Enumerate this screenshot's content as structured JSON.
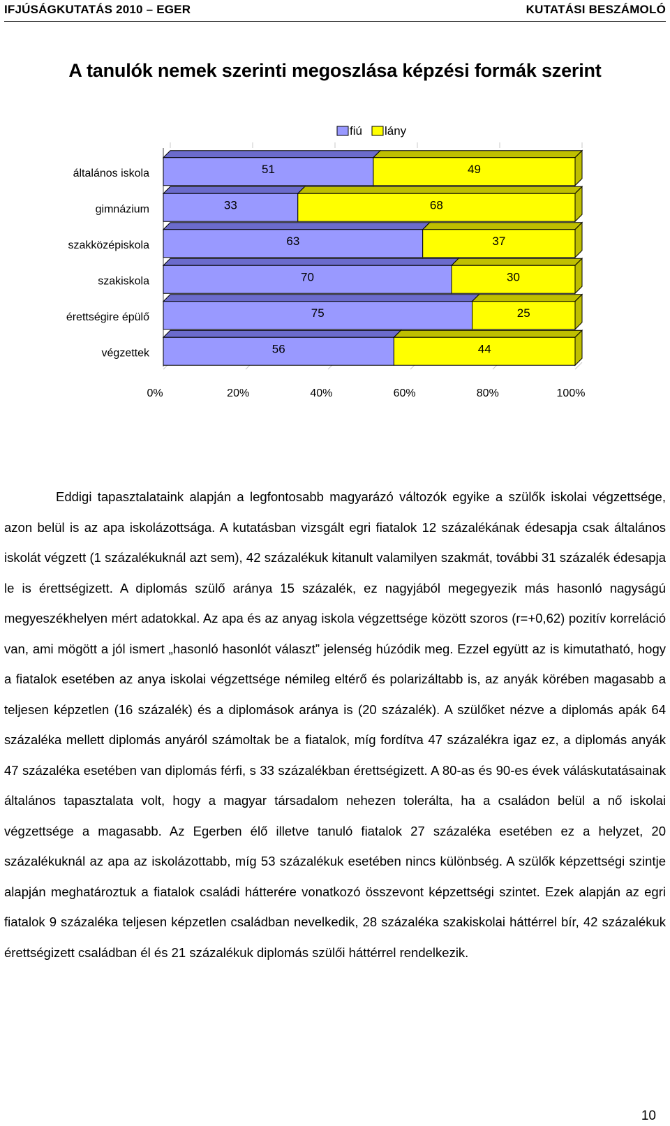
{
  "header": {
    "left": "IFJÚSÁGKUTATÁS 2010 – EGER",
    "right": "KUTATÁSI BESZÁMOLÓ"
  },
  "colors": {
    "fiu": "#9999FF",
    "lany": "#FFFF00",
    "fiu_side": "#6B6BCC",
    "lany_side": "#BFBF00",
    "edge": "#000000"
  },
  "chart_data": {
    "type": "bar",
    "orientation": "horizontal",
    "stacked": true,
    "percent_stacked": true,
    "title": "A tanulók nemek szerinti megoszlása képzési formák szerint",
    "categories": [
      "általános iskola",
      "gimnázium",
      "szakközépiskola",
      "szakiskola",
      "érettségire épülő",
      "végzettek"
    ],
    "series": [
      {
        "name": "fiú",
        "values": [
          51,
          33,
          63,
          70,
          75,
          56
        ]
      },
      {
        "name": "lány",
        "values": [
          49,
          68,
          37,
          30,
          25,
          44
        ]
      }
    ],
    "x_ticks": [
      "0%",
      "20%",
      "40%",
      "60%",
      "80%",
      "100%"
    ],
    "xlim": [
      0,
      100
    ],
    "legend_position": "top",
    "grid": true
  },
  "body": {
    "paragraph": "Eddigi tapasztalataink alapján a legfontosabb magyarázó változók egyike a szülők iskolai végzettsége, azon belül is az apa iskolázottsága. A kutatásban vizsgált egri fiatalok 12 százalékának édesapja csak általános iskolát végzett (1 százalékuknál azt sem), 42 százalékuk kitanult valamilyen szakmát, további 31 százalék édesapja le is érettségizett. A diplomás szülő aránya 15 százalék, ez nagyjából megegyezik más hasonló nagyságú megyeszékhelyen mért adatokkal. Az apa és az anyag iskola végzettsége között szoros (r=+0,62) pozitív korreláció van, ami mögött a jól ismert „hasonló hasonlót választ” jelenség húzódik meg. Ezzel együtt az is kimutatható, hogy a fiatalok esetében az anya iskolai végzettsége némileg eltérő és polarizáltabb is, az anyák körében magasabb a teljesen képzetlen (16 százalék) és a diplomások aránya is (20 százalék). A szülőket nézve a diplomás apák 64 százaléka mellett diplomás anyáról számoltak be a fiatalok, míg fordítva 47 százalékra igaz ez, a diplomás anyák 47 százaléka esetében van diplomás férfi, s 33 százalékban érettségizett. A 80-as és 90-es évek váláskutatásainak általános tapasztalata volt, hogy a magyar társadalom nehezen tolerálta, ha a családon belül a nő iskolai végzettsége a magasabb. Az Egerben élő illetve tanuló fiatalok 27 százaléka esetében ez a helyzet, 20 százalékuknál az apa az iskolázottabb, míg 53 százalékuk esetében nincs különbség. A szülők képzettségi szintje alapján meghatároztuk a fiatalok családi hátterére vonatkozó összevont képzettségi szintet. Ezek alapján az egri fiatalok 9 százaléka teljesen képzetlen családban nevelkedik, 28 százaléka szakiskolai háttérrel bír, 42 százalékuk érettségizett családban él és 21 százalékuk diplomás szülői háttérrel rendelkezik."
  },
  "page_number": "10"
}
